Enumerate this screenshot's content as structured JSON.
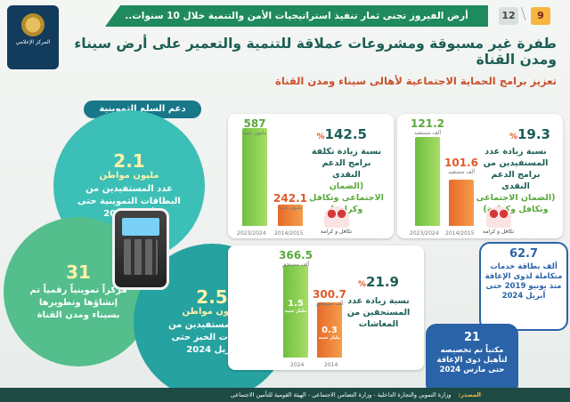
{
  "header": {
    "banner": "أرض الفيروز تجنى ثمار تنفيذ استراتيجيات الأمن والتنمية خلال 10 سنوات..",
    "page_current": "9",
    "page_total": "12",
    "logo_text": "المركز الإعلامي"
  },
  "title": "طفرة غير مسبوقة ومشروعات عملاقة للتنمية والتعمير على أرض سيناء ومدن القناة",
  "subtitle": "تعزيز برامج الحماية الاجتماعية لأهالى سيناء ومدن القناة",
  "supply": {
    "badge": "دعم السلع التموينية",
    "c1": {
      "value": "2.1",
      "unit": "مليون مواطن",
      "text": "عدد المستفيدين من البطاقات التموينية حتى أبريل 2024"
    },
    "c2": {
      "value": "31",
      "unit": "",
      "text": "مركزاً تموينياً رقمياً تم إنشاؤها وتطويرها بسيناء ومدن القناة"
    },
    "c3": {
      "value": "2.5",
      "unit": "مليون مواطن",
      "text": "عدد المستفيدين من بطاقات الخبز حتى أبريل 2024"
    }
  },
  "card_a": {
    "pct": "19.3",
    "pct_sign": "%",
    "text1": "نسبة زيادة عدد المستفيدين من",
    "text2": "برامج الدعم النقدى",
    "text3": "(الضمان الاجتماعى وتكافل وكرامة)",
    "bar_new": {
      "value": "121.2",
      "unit": "ألف مستفيد",
      "year": "2023/2024"
    },
    "bar_old": {
      "value": "101.6",
      "unit": "ألف مستفيد",
      "year": "2014/2015"
    },
    "logo_caption": "تكافل و كرامة"
  },
  "card_b": {
    "pct": "142.5",
    "pct_sign": "%",
    "text1": "نسبة زيادة تكلفة برامج الدعم النقدى",
    "text3": "(الضمان الاجتماعى وتكافل وكرامة)",
    "bar_new": {
      "value": "587",
      "unit": "مليون جنيه",
      "year": "2023/2024"
    },
    "bar_old": {
      "value": "242.1",
      "unit": "مليون جنيه",
      "year": "2014/2015"
    },
    "logo_caption": "تكافل و كرامة"
  },
  "card_c": {
    "pct": "21.9",
    "pct_sign": "%",
    "text1": "نسبة زيادة عدد المستحقين من المعاشات",
    "bar_new": {
      "value": "366.5",
      "unit": "ألف مستحق",
      "year": "2024",
      "inner": "1.5",
      "inner_unit": "مليار جنيه"
    },
    "bar_old": {
      "value": "300.7",
      "unit": "ألف مستحق",
      "year": "2014",
      "inner": "0.3",
      "inner_unit": "مليار جنيه"
    }
  },
  "pill_a": {
    "value": "62.7",
    "text": "ألف بطاقة خدمات متكاملة لذوى الإعاقة منذ يونيو 2019 حتى أبريل 2024"
  },
  "pill_b": {
    "value": "21",
    "text": "مكتباً تم تخصيصه لتأهيل ذوى الإعاقة حتى مارس 2024"
  },
  "footer": {
    "label": "المصدر:",
    "text": "وزارة التموين والتجارة الداخلية - وزارة التضامن الاجتماعى - الهيئة القومية للتأمين الاجتماعى"
  }
}
